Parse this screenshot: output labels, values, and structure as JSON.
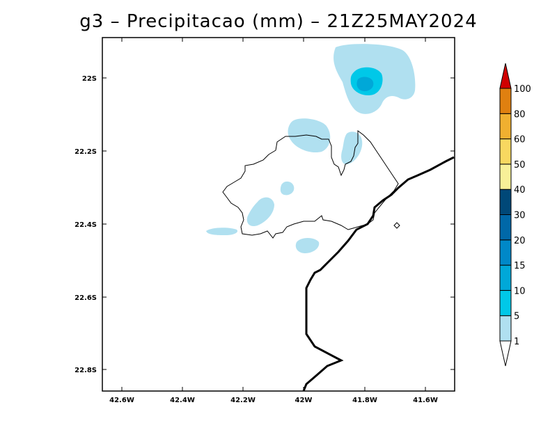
{
  "title": "g3 – Precipitacao (mm) – 21Z25MAY2024",
  "map": {
    "lat_ticks": [
      "22S",
      "22.2S",
      "22.4S",
      "22.6S",
      "22.8S"
    ],
    "lon_ticks": [
      "42.6W",
      "42.4W",
      "42.2W",
      "42W",
      "41.8W",
      "41.6W"
    ]
  },
  "colorbar": {
    "levels": [
      "1",
      "5",
      "10",
      "15",
      "20",
      "30",
      "40",
      "50",
      "60",
      "80",
      "100"
    ],
    "colors": [
      "#b0e0f0",
      "#00c8e8",
      "#00a8d8",
      "#0088c8",
      "#0068a8",
      "#004878",
      "#f8f098",
      "#f8d860",
      "#f0b030",
      "#e08010",
      "#d00000"
    ],
    "under_color": "#ffffff"
  },
  "precip_colors": {
    "light": "#b0e0f0",
    "medium": "#00c8e8",
    "heavy": "#00a8d8"
  }
}
